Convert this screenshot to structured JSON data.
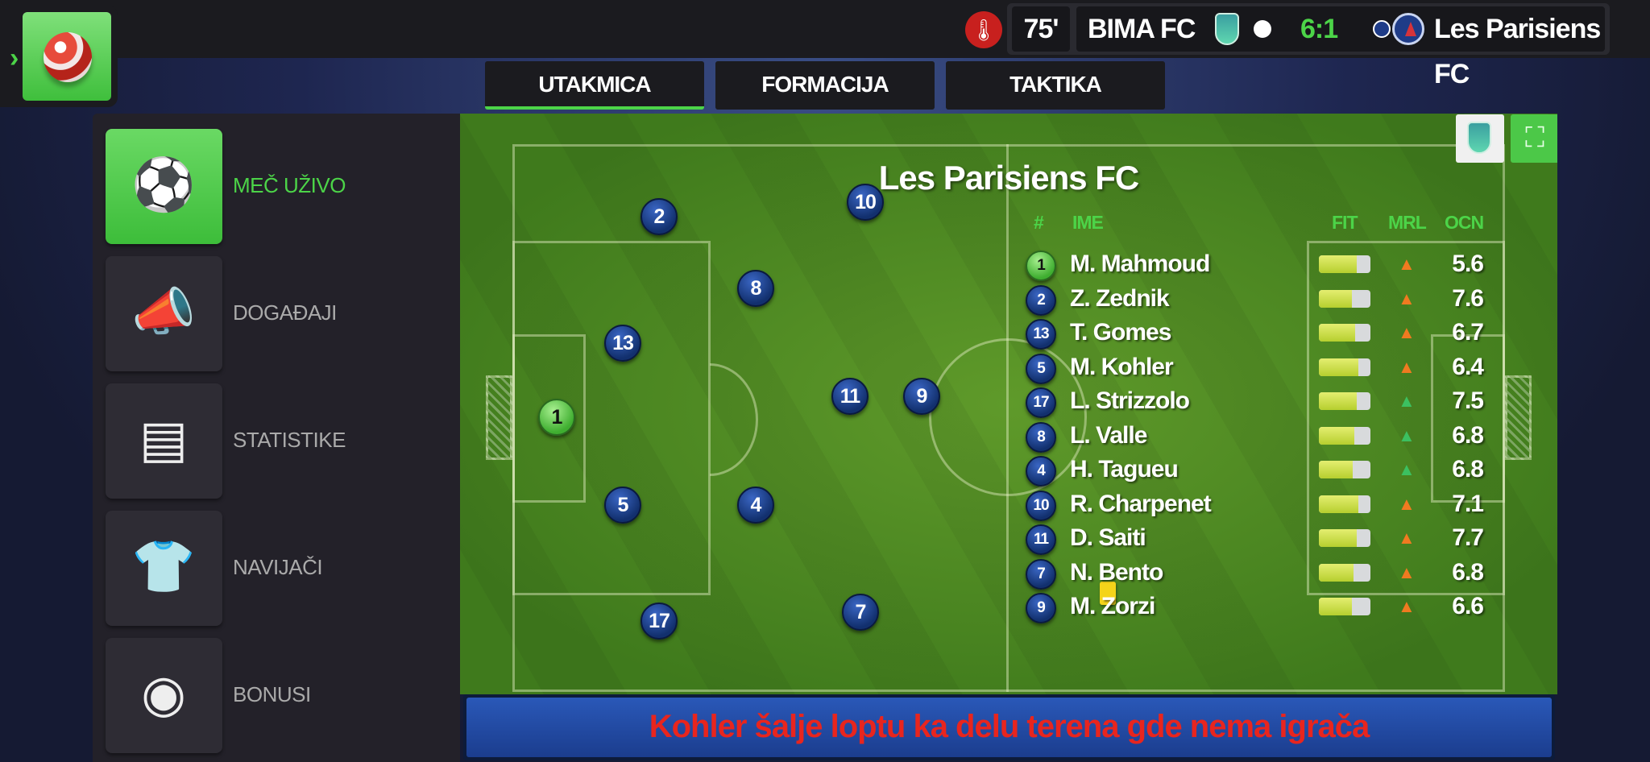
{
  "header": {
    "minute": "75'",
    "home_team": "BIMA FC",
    "score": "6:1",
    "away_team": "Les Parisiens FC",
    "icons": [
      "thermometer-icon",
      "club-crest-icon",
      "psg-crest-icon"
    ],
    "home_color": "#ffffff",
    "away_color": "#1f3c88",
    "score_color": "#4cd448"
  },
  "tabs": [
    {
      "label": "UTAKMICA",
      "active": true
    },
    {
      "label": "FORMACIJA",
      "active": false
    },
    {
      "label": "TAKTIKA",
      "active": false
    }
  ],
  "sidebar": {
    "items": [
      {
        "label": "MEČ UŽIVO",
        "icon": "live-match-icon",
        "active": true
      },
      {
        "label": "DOGAĐAJI",
        "icon": "whistle-icon",
        "active": false
      },
      {
        "label": "STATISTIKE",
        "icon": "stats-icon",
        "active": false
      },
      {
        "label": "NAVIJAČI",
        "icon": "jersey-icon",
        "active": false
      },
      {
        "label": "BONUSI",
        "icon": "bonus-icon",
        "active": false
      }
    ]
  },
  "pitch": {
    "team_title": "Les Parisiens FC",
    "columns": {
      "num": "#",
      "name": "IME",
      "fit": "FIT",
      "mrl": "MRL",
      "ocn": "OCN"
    },
    "players": [
      {
        "num": "1",
        "name": "M. Mahmoud",
        "fit": 0.73,
        "mrl": "up-orange",
        "ocn": "5.6",
        "gk": true
      },
      {
        "num": "2",
        "name": "Z. Zednik",
        "fit": 0.64,
        "mrl": "up-orange",
        "ocn": "7.6"
      },
      {
        "num": "13",
        "name": "T. Gomes",
        "fit": 0.7,
        "mrl": "up-orange",
        "ocn": "6.7"
      },
      {
        "num": "5",
        "name": "M. Kohler",
        "fit": 0.77,
        "mrl": "up-orange",
        "ocn": "6.4",
        "yellow_card": true
      },
      {
        "num": "17",
        "name": "L. Strizzolo",
        "fit": 0.73,
        "mrl": "up-green",
        "ocn": "7.5"
      },
      {
        "num": "8",
        "name": "L. Valle",
        "fit": 0.68,
        "mrl": "up-green",
        "ocn": "6.8"
      },
      {
        "num": "4",
        "name": "H. Tagueu",
        "fit": 0.65,
        "mrl": "up-green",
        "ocn": "6.8"
      },
      {
        "num": "10",
        "name": "R. Charpenet",
        "fit": 0.77,
        "mrl": "up-orange",
        "ocn": "7.1"
      },
      {
        "num": "11",
        "name": "D. Saiti",
        "fit": 0.73,
        "mrl": "up-orange",
        "ocn": "7.7"
      },
      {
        "num": "7",
        "name": "N. Bento",
        "fit": 0.67,
        "mrl": "up-orange",
        "ocn": "6.8"
      },
      {
        "num": "9",
        "name": "M. Zorzi",
        "fit": 0.64,
        "mrl": "up-orange",
        "ocn": "6.6"
      }
    ],
    "fullscreen_icon": "fullscreen-icon"
  },
  "commentary": "Kohler šalje loptu ka delu terena gde nema igrača"
}
